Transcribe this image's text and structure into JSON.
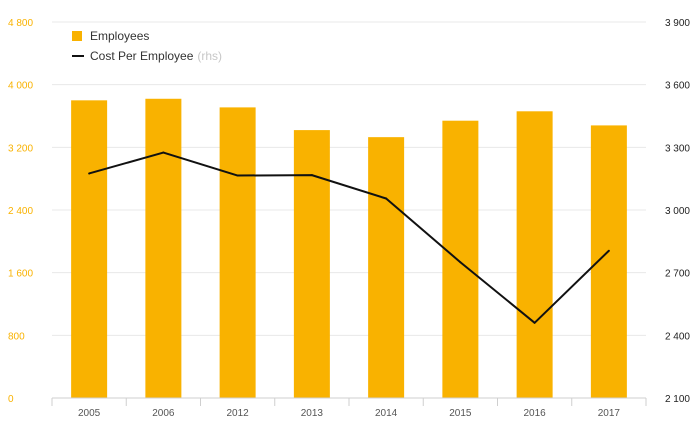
{
  "colors": {
    "bar": "#f9b200",
    "line": "#111111",
    "grid": "#e8e8e8",
    "left_axis_text": "#f9b200",
    "right_axis_text": "#222222",
    "x_axis_text": "#555555"
  },
  "legend": {
    "employees": "Employees",
    "cost": "Cost Per Employee",
    "cost_suffix": "(rhs)"
  },
  "chart_data": {
    "type": "bar",
    "categories": [
      "2005",
      "2006",
      "2012",
      "2013",
      "2014",
      "2015",
      "2016",
      "2017"
    ],
    "series": [
      {
        "name": "Employees",
        "type": "bar",
        "axis": "left",
        "values": [
          3800,
          3820,
          3710,
          3420,
          3330,
          3540,
          3660,
          3480
        ]
      },
      {
        "name": "Cost Per Employee",
        "type": "line",
        "axis": "right",
        "values": [
          3175,
          3275,
          3165,
          3167,
          3055,
          2750,
          2460,
          2805
        ]
      }
    ],
    "y_left": {
      "range": [
        0,
        4800
      ],
      "ticks": [
        "0",
        "800",
        "1 600",
        "2 400",
        "3 200",
        "4 000",
        "4 800"
      ],
      "tick_values": [
        0,
        800,
        1600,
        2400,
        3200,
        4000,
        4800
      ]
    },
    "y_right": {
      "range": [
        2100,
        3900
      ],
      "ticks": [
        "2 100",
        "2 400",
        "2 700",
        "3 000",
        "3 300",
        "3 600",
        "3 900"
      ],
      "tick_values": [
        2100,
        2400,
        2700,
        3000,
        3300,
        3600,
        3900
      ]
    },
    "grid": true,
    "legend_position": "top-left"
  }
}
